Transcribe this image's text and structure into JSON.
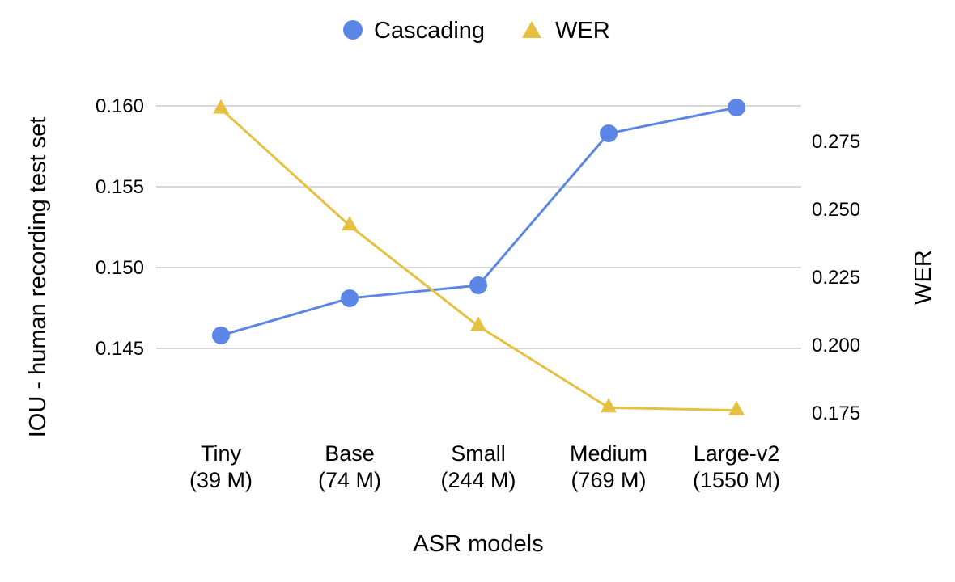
{
  "chart_data": {
    "type": "line",
    "title": "",
    "xlabel": "ASR models",
    "ylabel_left": "IOU - human recording test set",
    "ylabel_right": "WER",
    "categories": [
      {
        "name": "Tiny",
        "size": "(39 M)"
      },
      {
        "name": "Base",
        "size": "(74 M)"
      },
      {
        "name": "Small",
        "size": "(244 M)"
      },
      {
        "name": "Medium",
        "size": "(769 M)"
      },
      {
        "name": "Large-v2",
        "size": "(1550 M)"
      }
    ],
    "series": [
      {
        "name": "Cascading",
        "axis": "left",
        "marker": "circle",
        "color": "#5B86E5",
        "values": [
          0.1458,
          0.1481,
          0.1489,
          0.1583,
          0.1599
        ]
      },
      {
        "name": "WER",
        "axis": "right",
        "marker": "triangle",
        "color": "#E6C040",
        "values": [
          0.287,
          0.244,
          0.207,
          0.177,
          0.176
        ]
      }
    ],
    "y_left": {
      "range": [
        0.1435,
        0.1615
      ],
      "ticks": [
        "0.145",
        "0.150",
        "0.155",
        "0.160"
      ]
    },
    "y_right": {
      "range": [
        0.1632,
        0.2928
      ],
      "ticks": [
        "0.175",
        "0.200",
        "0.225",
        "0.250",
        "0.275"
      ]
    },
    "grid": true,
    "legend_position": "top-center"
  }
}
